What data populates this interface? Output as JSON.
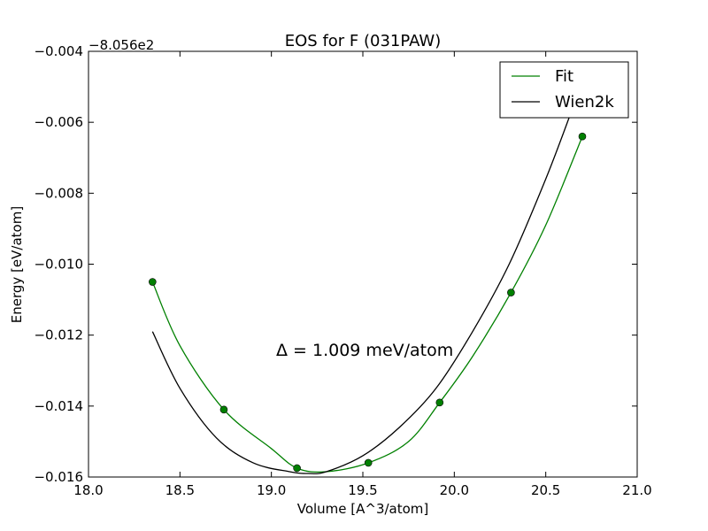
{
  "chart_data": {
    "type": "line",
    "title": "EOS for F (031PAW)",
    "xlabel": "Volume [A^3/atom]",
    "ylabel": "Energy [eV/atom]",
    "y_offset_label": "−8.056e2",
    "xlim": [
      18.0,
      21.0
    ],
    "ylim": [
      -0.016,
      -0.004
    ],
    "x_ticks": [
      18.0,
      18.5,
      19.0,
      19.5,
      20.0,
      20.5,
      21.0
    ],
    "x_tick_labels": [
      "18.0",
      "18.5",
      "19.0",
      "19.5",
      "20.0",
      "20.5",
      "21.0"
    ],
    "y_ticks": [
      -0.016,
      -0.014,
      -0.012,
      -0.01,
      -0.008,
      -0.006,
      -0.004
    ],
    "y_tick_labels": [
      "−0.016",
      "−0.014",
      "−0.012",
      "−0.010",
      "−0.008",
      "−0.006",
      "−0.004"
    ],
    "grid": false,
    "legend_position": "top-right",
    "annotation": "Δ = 1.009 meV/atom",
    "series": [
      {
        "name": "Fit",
        "kind": "line",
        "color": "#008000",
        "x": [
          18.35,
          18.5,
          18.74,
          19.0,
          19.14,
          19.3,
          19.53,
          19.75,
          19.92,
          20.1,
          20.31,
          20.5,
          20.7
        ],
        "y": [
          -0.0105,
          -0.0123,
          -0.0141,
          -0.0152,
          -0.01575,
          -0.01585,
          -0.0156,
          -0.015,
          -0.0139,
          -0.0126,
          -0.0108,
          -0.0089,
          -0.0064
        ]
      },
      {
        "name": "Wien2k",
        "kind": "line",
        "color": "#000000",
        "x": [
          18.35,
          18.5,
          18.7,
          18.9,
          19.1,
          19.2,
          19.3,
          19.5,
          19.7,
          19.9,
          20.1,
          20.3,
          20.5,
          20.64
        ],
        "y": [
          -0.0119,
          -0.0135,
          -0.0149,
          -0.0156,
          -0.01585,
          -0.0159,
          -0.01585,
          -0.0154,
          -0.0146,
          -0.0135,
          -0.0119,
          -0.01,
          -0.0076,
          -0.0057
        ]
      },
      {
        "name": "",
        "kind": "points",
        "color": "#008000",
        "x": [
          18.35,
          18.74,
          19.14,
          19.53,
          19.92,
          20.31,
          20.7
        ],
        "y": [
          -0.0105,
          -0.0141,
          -0.01575,
          -0.0156,
          -0.0139,
          -0.0108,
          -0.0064
        ]
      }
    ]
  }
}
